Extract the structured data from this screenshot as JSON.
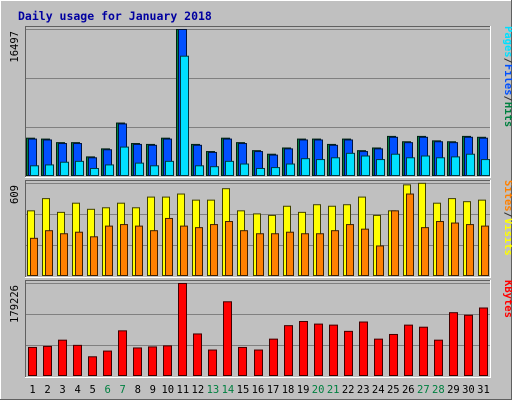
{
  "chart_data": {
    "type": "bar",
    "title": "Daily usage for January 2018",
    "categories": [
      "1",
      "2",
      "3",
      "4",
      "5",
      "6",
      "7",
      "8",
      "9",
      "10",
      "11",
      "12",
      "13",
      "14",
      "15",
      "16",
      "17",
      "18",
      "19",
      "20",
      "21",
      "22",
      "23",
      "24",
      "25",
      "26",
      "27",
      "28",
      "29",
      "30",
      "31"
    ],
    "weekend_days": [
      "6",
      "7",
      "13",
      "14",
      "20",
      "21",
      "27",
      "28"
    ],
    "panels": [
      {
        "id": "hits-files-pages",
        "ymax_label": "16497",
        "ymax": 16497,
        "legend": [
          "Pages",
          "/",
          "Files",
          "/",
          "Hits"
        ],
        "legend_colors": [
          "#00E0FF",
          "#333333",
          "#0050FF",
          "#333333",
          "#008040"
        ],
        "series": [
          {
            "name": "Hits",
            "color": "#008040",
            "values": [
              4300,
              4200,
              3800,
              3800,
              2200,
              3100,
              6000,
              3700,
              3600,
              4300,
              16497,
              3600,
              2800,
              4300,
              3800,
              2900,
              2500,
              3200,
              4200,
              4200,
              3600,
              4200,
              2900,
              3200,
              4500,
              3900,
              4500,
              4000,
              3900,
              4500,
              4400
            ]
          },
          {
            "name": "Files",
            "color": "#0050FF",
            "values": [
              4200,
              4100,
              3700,
              3700,
              2100,
              3000,
              5900,
              3600,
              3500,
              4200,
              16497,
              3500,
              2700,
              4200,
              3700,
              2800,
              2400,
              3100,
              4100,
              4100,
              3500,
              4100,
              2800,
              3100,
              4400,
              3800,
              4400,
              3900,
              3800,
              4400,
              4300
            ]
          },
          {
            "name": "Pages",
            "color": "#00E0FF",
            "values": [
              1200,
              1300,
              1600,
              1700,
              900,
              1300,
              3300,
              1500,
              1200,
              1700,
              13500,
              1200,
              1100,
              1700,
              1400,
              900,
              1000,
              1400,
              2000,
              1900,
              2100,
              2600,
              2300,
              1900,
              2500,
              2100,
              2300,
              2100,
              2200,
              2500,
              1900
            ]
          }
        ]
      },
      {
        "id": "visits-sites",
        "ymax_label": "609",
        "ymax": 609,
        "legend": [
          "Sites",
          "/",
          "Visits"
        ],
        "legend_colors": [
          "#FF8000",
          "#333333",
          "#FFFF00"
        ],
        "series": [
          {
            "name": "Visits",
            "color": "#FFFF00",
            "values": [
              430,
              510,
              420,
              480,
              440,
              450,
              480,
              450,
              520,
              520,
              540,
              500,
              500,
              575,
              430,
              410,
              400,
              460,
              420,
              470,
              460,
              470,
              520,
              400,
              430,
              600,
              610,
              480,
              510,
              490,
              500
            ]
          },
          {
            "name": "Sites",
            "color": "#FF8000",
            "values": [
              250,
              300,
              280,
              290,
              260,
              330,
              340,
              330,
              300,
              380,
              330,
              320,
              340,
              360,
              300,
              280,
              280,
              290,
              280,
              280,
              300,
              340,
              310,
              200,
              430,
              540,
              320,
              360,
              350,
              340,
              330
            ]
          }
        ]
      },
      {
        "id": "kbytes",
        "ymax_label": "179226",
        "ymax": 179226,
        "legend": [
          "KBytes"
        ],
        "legend_colors": [
          "#FF0000"
        ],
        "series": [
          {
            "name": "KBytes",
            "color": "#FF0000",
            "values": [
              56000,
              58000,
              70000,
              60000,
              38000,
              49000,
              88000,
              55000,
              57000,
              59000,
              179226,
              82000,
              51000,
              144000,
              56000,
              51000,
              72000,
              98000,
              106000,
              101000,
              99000,
              87000,
              105000,
              72000,
              81000,
              99000,
              95000,
              70000,
              123000,
              118000,
              132000
            ]
          }
        ]
      }
    ]
  }
}
